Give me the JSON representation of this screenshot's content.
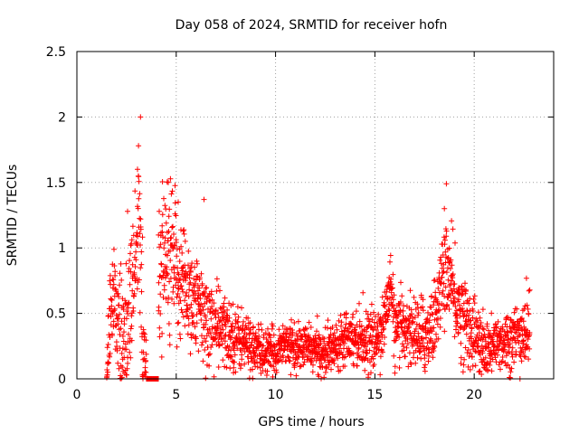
{
  "chart_data": {
    "type": "scatter",
    "title": "Day 058 of 2024, SRMTID for receiver hofn",
    "xlabel": "GPS time / hours",
    "ylabel": "SRMTID / TECUs",
    "xlim": [
      0,
      24
    ],
    "ylim": [
      0,
      2.5
    ],
    "xticks": [
      0,
      5,
      10,
      15,
      20
    ],
    "xtick_labels": [
      "0",
      "5",
      "10",
      "15",
      "20"
    ],
    "yticks": [
      0,
      0.5,
      1,
      1.5,
      2,
      2.5
    ],
    "ytick_labels": [
      "0",
      "0.5",
      "1",
      "1.5",
      "2",
      "2.5"
    ],
    "grid": true,
    "marker": "+",
    "series": [
      {
        "name": "SRMTID",
        "color": "#ff0000",
        "trend": {
          "x": [
            1.5,
            1.7,
            1.9,
            2.1,
            2.3,
            2.5,
            2.7,
            2.9,
            3.0,
            3.1,
            3.2,
            3.3,
            3.4,
            3.6,
            3.8,
            4.0,
            4.1,
            4.3,
            4.5,
            4.7,
            5.0,
            5.3,
            5.6,
            6.0,
            6.5,
            7.0,
            7.5,
            8.0,
            8.5,
            9.0,
            9.5,
            10.0,
            10.5,
            11.0,
            11.5,
            12.0,
            12.5,
            13.0,
            13.5,
            14.0,
            14.5,
            15.0,
            15.5,
            15.8,
            16.0,
            16.5,
            17.0,
            17.5,
            18.0,
            18.3,
            18.6,
            18.8,
            19.0,
            19.5,
            20.0,
            20.5,
            21.0,
            21.5,
            22.0,
            22.5,
            22.8
          ],
          "y": [
            0.05,
            0.45,
            0.6,
            0.4,
            0.35,
            0.3,
            0.55,
            0.85,
            1.0,
            1.3,
            1.1,
            0.35,
            0.1,
            0.02,
            0.0,
            0.0,
            0.75,
            0.9,
            0.95,
            0.9,
            0.8,
            0.75,
            0.7,
            0.55,
            0.45,
            0.4,
            0.35,
            0.32,
            0.28,
            0.22,
            0.2,
            0.2,
            0.3,
            0.22,
            0.25,
            0.22,
            0.2,
            0.25,
            0.35,
            0.32,
            0.3,
            0.28,
            0.45,
            0.75,
            0.35,
            0.4,
            0.35,
            0.32,
            0.45,
            0.7,
            0.85,
            0.75,
            0.6,
            0.45,
            0.35,
            0.2,
            0.25,
            0.3,
            0.3,
            0.35,
            0.4
          ]
        },
        "spread": {
          "x": [
            1.5,
            3.0,
            4.5,
            6.0,
            8.0,
            10.0,
            12.0,
            14.0,
            16.0,
            18.0,
            19.0,
            21.0,
            22.8
          ],
          "y": [
            0.15,
            0.35,
            0.3,
            0.2,
            0.12,
            0.08,
            0.08,
            0.1,
            0.12,
            0.15,
            0.18,
            0.1,
            0.15
          ]
        },
        "peaks": [
          {
            "x": 3.2,
            "y": 2.0
          },
          {
            "x": 3.1,
            "y": 1.78
          },
          {
            "x": 3.05,
            "y": 1.6
          },
          {
            "x": 2.55,
            "y": 1.28
          },
          {
            "x": 4.6,
            "y": 1.5
          },
          {
            "x": 5.1,
            "y": 1.35
          },
          {
            "x": 6.4,
            "y": 1.37
          },
          {
            "x": 18.6,
            "y": 1.49
          },
          {
            "x": 18.5,
            "y": 1.3
          }
        ],
        "zero_run": {
          "x_from": 3.5,
          "x_to": 4.1,
          "y": 0.0
        },
        "n_points": 2300
      }
    ]
  }
}
